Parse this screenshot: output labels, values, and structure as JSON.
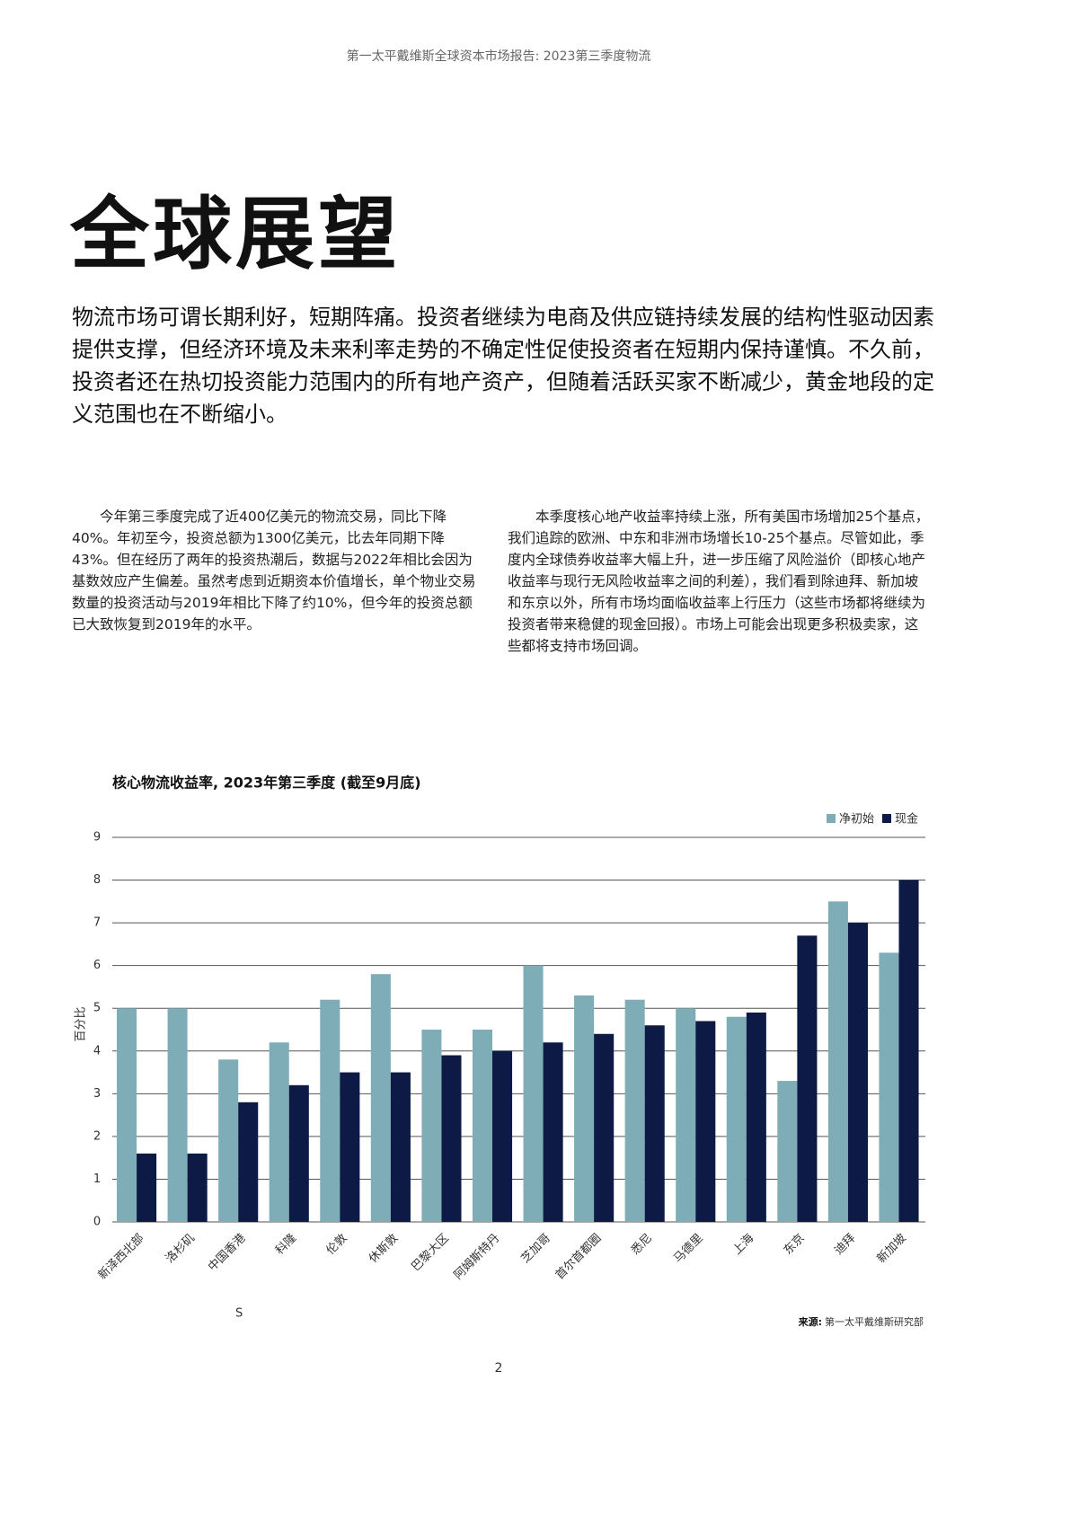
{
  "header": "第一太平戴维斯全球资本市场报告: 2023第三季度物流",
  "title": "全球展望",
  "lead": "物流市场可谓长期利好，短期阵痛。投资者继续为电商及供应链持续发展的结构性驱动因素提供支撑，但经济环境及未来利率走势的不确定性促使投资者在短期内保持谨慎。不久前，投资者还在热切投资能力范围内的所有地产资产，但随着活跃买家不断减少，黄金地段的定义范围也在不断缩小。",
  "columns": [
    "今年第三季度完成了近400亿美元的物流交易，同比下降40%。年初至今，投资总额为1300亿美元，比去年同期下降43%。但在经历了两年的投资热潮后，数据与2022年相比会因为基数效应产生偏差。虽然考虑到近期资本价值增长，单个物业交易数量的投资活动与2019年相比下降了约10%，但今年的投资总额已大致恢复到2019年的水平。",
    "本季度核心地产收益率持续上涨，所有美国市场增加25个基点，我们追踪的欧洲、中东和非洲市场增长10-25个基点。尽管如此，季度内全球债券收益率大幅上升，进一步压缩了风险溢价（即核心地产收益率与现行无风险收益率之间的利差），我们看到除迪拜、新加坡和东京以外，所有市场均面临收益率上行压力（这些市场都将继续为投资者带来稳健的现金回报）。市场上可能会出现更多积极卖家，这些都将支持市场回调。"
  ],
  "chart_data": {
    "type": "bar",
    "title": "核心物流收益率, 2023年第三季度 (截至9月底)",
    "y_label": "百分比",
    "categories": [
      "新泽西北部",
      "洛杉矶",
      "中国香港",
      "科隆",
      "伦敦",
      "休斯敦",
      "巴黎大区",
      "阿姆斯特丹",
      "芝加哥",
      "首尔首都圈",
      "悉尼",
      "马德里",
      "上海",
      "东京",
      "迪拜",
      "新加坡"
    ],
    "series": [
      {
        "name": "净初始",
        "color": "#7fadb7",
        "values": [
          5.0,
          5.0,
          3.8,
          4.2,
          5.2,
          5.8,
          4.5,
          4.5,
          6.0,
          5.3,
          5.2,
          5.0,
          4.8,
          3.3,
          7.5,
          6.3
        ]
      },
      {
        "name": "现金",
        "color": "#0d1a45",
        "values": [
          1.6,
          1.6,
          2.8,
          3.2,
          3.5,
          3.5,
          3.9,
          4.0,
          4.2,
          4.4,
          4.6,
          4.7,
          4.9,
          6.7,
          7.0,
          8.0
        ]
      }
    ],
    "ylim": [
      0,
      9
    ],
    "yticks": [
      0,
      1,
      2,
      3,
      4,
      5,
      6,
      7,
      8,
      9
    ],
    "grid": true,
    "legend": "top-right"
  },
  "stray": "S",
  "source_label": "来源:",
  "source_text": "第一太平戴维斯研究部",
  "page_number": "2"
}
